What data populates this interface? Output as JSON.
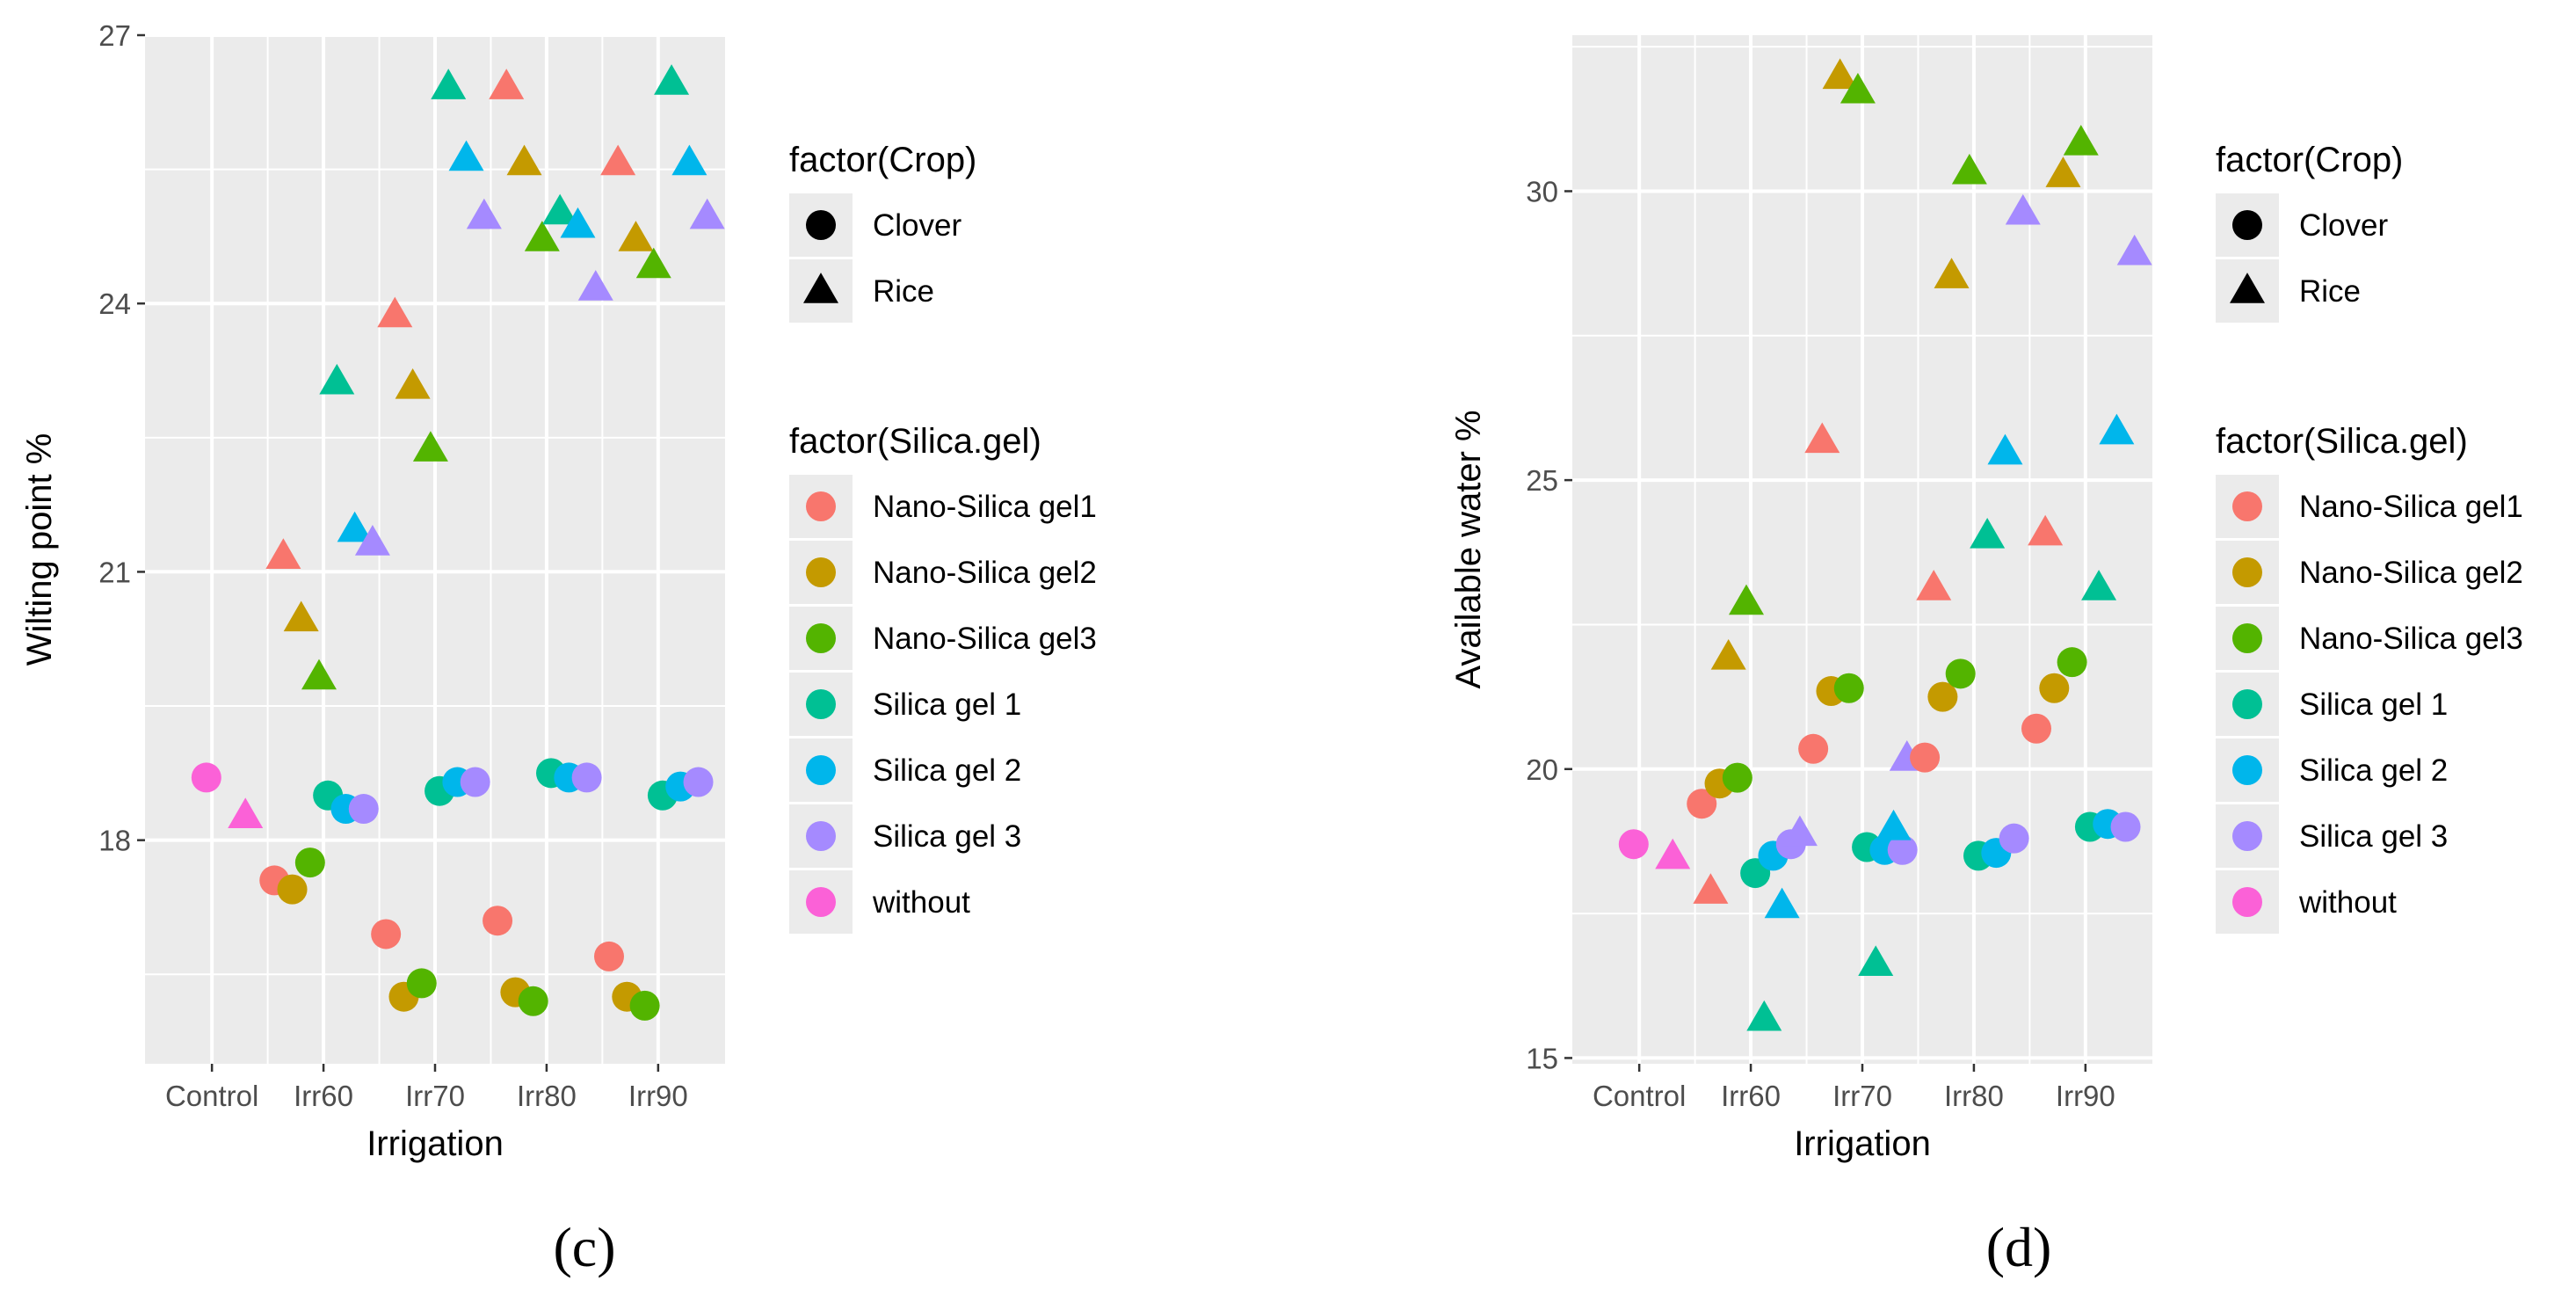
{
  "chart_data": [
    {
      "type": "scatter",
      "panel_label": "(c)",
      "panel_letter": "c",
      "xlabel": "Irrigation",
      "ylabel": "Wilting point  %",
      "categories": [
        "Control",
        "Irr60",
        "Irr70",
        "Irr80",
        "Irr90"
      ],
      "ylim": [
        15.5,
        27.0
      ],
      "yticks": [
        18,
        21,
        24,
        27
      ],
      "grid": true,
      "legend_position": "right",
      "points": [
        {
          "x": 0.95,
          "y": 18.7,
          "silica": "without",
          "crop": "Clover"
        },
        {
          "x": 1.3,
          "y": 18.25,
          "silica": "without",
          "crop": "Rice"
        },
        {
          "x": 1.56,
          "y": 17.55,
          "silica": "Nano-Silica gel1",
          "crop": "Clover"
        },
        {
          "x": 1.72,
          "y": 17.45,
          "silica": "Nano-Silica gel2",
          "crop": "Clover"
        },
        {
          "x": 1.88,
          "y": 17.75,
          "silica": "Nano-Silica gel3",
          "crop": "Clover"
        },
        {
          "x": 2.04,
          "y": 18.5,
          "silica": "Silica gel 1",
          "crop": "Clover"
        },
        {
          "x": 2.2,
          "y": 18.35,
          "silica": "Silica gel 2",
          "crop": "Clover"
        },
        {
          "x": 2.36,
          "y": 18.35,
          "silica": "Silica gel 3",
          "crop": "Clover"
        },
        {
          "x": 1.64,
          "y": 21.15,
          "silica": "Nano-Silica gel1",
          "crop": "Rice"
        },
        {
          "x": 1.8,
          "y": 20.45,
          "silica": "Nano-Silica gel2",
          "crop": "Rice"
        },
        {
          "x": 1.96,
          "y": 19.8,
          "silica": "Nano-Silica gel3",
          "crop": "Rice"
        },
        {
          "x": 2.12,
          "y": 23.1,
          "silica": "Silica gel 1",
          "crop": "Rice"
        },
        {
          "x": 2.28,
          "y": 21.45,
          "silica": "Silica gel 2",
          "crop": "Rice"
        },
        {
          "x": 2.44,
          "y": 21.3,
          "silica": "Silica gel 3",
          "crop": "Rice"
        },
        {
          "x": 2.56,
          "y": 16.95,
          "silica": "Nano-Silica gel1",
          "crop": "Clover"
        },
        {
          "x": 2.72,
          "y": 16.25,
          "silica": "Nano-Silica gel2",
          "crop": "Clover"
        },
        {
          "x": 2.88,
          "y": 16.4,
          "silica": "Nano-Silica gel3",
          "crop": "Clover"
        },
        {
          "x": 3.04,
          "y": 18.55,
          "silica": "Silica gel 1",
          "crop": "Clover"
        },
        {
          "x": 3.2,
          "y": 18.65,
          "silica": "Silica gel 2",
          "crop": "Clover"
        },
        {
          "x": 3.36,
          "y": 18.65,
          "silica": "Silica gel 3",
          "crop": "Clover"
        },
        {
          "x": 2.64,
          "y": 23.85,
          "silica": "Nano-Silica gel1",
          "crop": "Rice"
        },
        {
          "x": 2.8,
          "y": 23.05,
          "silica": "Nano-Silica gel2",
          "crop": "Rice"
        },
        {
          "x": 2.96,
          "y": 22.35,
          "silica": "Nano-Silica gel3",
          "crop": "Rice"
        },
        {
          "x": 3.12,
          "y": 26.4,
          "silica": "Silica gel 1",
          "crop": "Rice"
        },
        {
          "x": 3.28,
          "y": 25.6,
          "silica": "Silica gel 2",
          "crop": "Rice"
        },
        {
          "x": 3.44,
          "y": 24.95,
          "silica": "Silica gel 3",
          "crop": "Rice"
        },
        {
          "x": 3.56,
          "y": 17.1,
          "silica": "Nano-Silica gel1",
          "crop": "Clover"
        },
        {
          "x": 3.72,
          "y": 16.3,
          "silica": "Nano-Silica gel2",
          "crop": "Clover"
        },
        {
          "x": 3.88,
          "y": 16.2,
          "silica": "Nano-Silica gel3",
          "crop": "Clover"
        },
        {
          "x": 4.04,
          "y": 18.75,
          "silica": "Silica gel 1",
          "crop": "Clover"
        },
        {
          "x": 4.2,
          "y": 18.7,
          "silica": "Silica gel 2",
          "crop": "Clover"
        },
        {
          "x": 4.36,
          "y": 18.7,
          "silica": "Silica gel 3",
          "crop": "Clover"
        },
        {
          "x": 3.64,
          "y": 26.4,
          "silica": "Nano-Silica gel1",
          "crop": "Rice"
        },
        {
          "x": 3.8,
          "y": 25.55,
          "silica": "Nano-Silica gel2",
          "crop": "Rice"
        },
        {
          "x": 3.96,
          "y": 24.7,
          "silica": "Nano-Silica gel3",
          "crop": "Rice"
        },
        {
          "x": 4.12,
          "y": 25.0,
          "silica": "Silica gel 1",
          "crop": "Rice"
        },
        {
          "x": 4.28,
          "y": 24.85,
          "silica": "Silica gel 2",
          "crop": "Rice"
        },
        {
          "x": 4.44,
          "y": 24.15,
          "silica": "Silica gel 3",
          "crop": "Rice"
        },
        {
          "x": 4.56,
          "y": 16.7,
          "silica": "Nano-Silica gel1",
          "crop": "Clover"
        },
        {
          "x": 4.72,
          "y": 16.25,
          "silica": "Nano-Silica gel2",
          "crop": "Clover"
        },
        {
          "x": 4.88,
          "y": 16.15,
          "silica": "Nano-Silica gel3",
          "crop": "Clover"
        },
        {
          "x": 5.04,
          "y": 18.5,
          "silica": "Silica gel 1",
          "crop": "Clover"
        },
        {
          "x": 5.2,
          "y": 18.6,
          "silica": "Silica gel 2",
          "crop": "Clover"
        },
        {
          "x": 5.36,
          "y": 18.65,
          "silica": "Silica gel 3",
          "crop": "Clover"
        },
        {
          "x": 4.64,
          "y": 25.55,
          "silica": "Nano-Silica gel1",
          "crop": "Rice"
        },
        {
          "x": 4.8,
          "y": 24.7,
          "silica": "Nano-Silica gel2",
          "crop": "Rice"
        },
        {
          "x": 4.96,
          "y": 24.4,
          "silica": "Nano-Silica gel3",
          "crop": "Rice"
        },
        {
          "x": 5.12,
          "y": 26.45,
          "silica": "Silica gel 1",
          "crop": "Rice"
        },
        {
          "x": 5.28,
          "y": 25.55,
          "silica": "Silica gel 2",
          "crop": "Rice"
        },
        {
          "x": 5.44,
          "y": 24.95,
          "silica": "Silica gel 3",
          "crop": "Rice"
        }
      ]
    },
    {
      "type": "scatter",
      "panel_label": "(d)",
      "panel_letter": "d",
      "xlabel": "Irrigation",
      "ylabel": "Available water  %",
      "categories": [
        "Control",
        "Irr60",
        "Irr70",
        "Irr80",
        "Irr90"
      ],
      "ylim": [
        14.9,
        32.7
      ],
      "yticks": [
        15,
        20,
        25,
        30
      ],
      "grid": true,
      "legend_position": "right",
      "points": [
        {
          "x": 0.95,
          "y": 18.7,
          "silica": "without",
          "crop": "Clover"
        },
        {
          "x": 1.3,
          "y": 18.45,
          "silica": "without",
          "crop": "Rice"
        },
        {
          "x": 1.56,
          "y": 19.4,
          "silica": "Nano-Silica gel1",
          "crop": "Clover"
        },
        {
          "x": 1.72,
          "y": 19.75,
          "silica": "Nano-Silica gel2",
          "crop": "Clover"
        },
        {
          "x": 1.88,
          "y": 19.85,
          "silica": "Nano-Silica gel3",
          "crop": "Clover"
        },
        {
          "x": 2.04,
          "y": 18.2,
          "silica": "Silica gel 1",
          "crop": "Clover"
        },
        {
          "x": 2.2,
          "y": 18.5,
          "silica": "Silica gel 2",
          "crop": "Clover"
        },
        {
          "x": 2.36,
          "y": 18.7,
          "silica": "Silica gel 3",
          "crop": "Clover"
        },
        {
          "x": 1.64,
          "y": 17.85,
          "silica": "Nano-Silica gel1",
          "crop": "Rice"
        },
        {
          "x": 1.8,
          "y": 21.9,
          "silica": "Nano-Silica gel2",
          "crop": "Rice"
        },
        {
          "x": 1.96,
          "y": 22.85,
          "silica": "Nano-Silica gel3",
          "crop": "Rice"
        },
        {
          "x": 2.12,
          "y": 15.65,
          "silica": "Silica gel 1",
          "crop": "Rice"
        },
        {
          "x": 2.28,
          "y": 17.6,
          "silica": "Silica gel 2",
          "crop": "Rice"
        },
        {
          "x": 2.44,
          "y": 18.85,
          "silica": "Silica gel 3",
          "crop": "Rice"
        },
        {
          "x": 2.56,
          "y": 20.35,
          "silica": "Nano-Silica gel1",
          "crop": "Clover"
        },
        {
          "x": 2.72,
          "y": 21.35,
          "silica": "Nano-Silica gel2",
          "crop": "Clover"
        },
        {
          "x": 2.88,
          "y": 21.4,
          "silica": "Nano-Silica gel3",
          "crop": "Clover"
        },
        {
          "x": 3.04,
          "y": 18.65,
          "silica": "Silica gel 1",
          "crop": "Clover"
        },
        {
          "x": 3.2,
          "y": 18.6,
          "silica": "Silica gel 2",
          "crop": "Clover"
        },
        {
          "x": 3.36,
          "y": 18.6,
          "silica": "Silica gel 3",
          "crop": "Clover"
        },
        {
          "x": 2.64,
          "y": 25.65,
          "silica": "Nano-Silica gel1",
          "crop": "Rice"
        },
        {
          "x": 2.8,
          "y": 31.95,
          "silica": "Nano-Silica gel2",
          "crop": "Rice"
        },
        {
          "x": 2.96,
          "y": 31.7,
          "silica": "Nano-Silica gel3",
          "crop": "Rice"
        },
        {
          "x": 3.12,
          "y": 16.6,
          "silica": "Silica gel 1",
          "crop": "Rice"
        },
        {
          "x": 3.28,
          "y": 18.95,
          "silica": "Silica gel 2",
          "crop": "Rice"
        },
        {
          "x": 3.4,
          "y": 20.15,
          "silica": "Silica gel 3",
          "crop": "Rice"
        },
        {
          "x": 3.56,
          "y": 20.2,
          "silica": "Nano-Silica gel1",
          "crop": "Clover"
        },
        {
          "x": 3.72,
          "y": 21.25,
          "silica": "Nano-Silica gel2",
          "crop": "Clover"
        },
        {
          "x": 3.88,
          "y": 21.65,
          "silica": "Nano-Silica gel3",
          "crop": "Clover"
        },
        {
          "x": 4.04,
          "y": 18.5,
          "silica": "Silica gel 1",
          "crop": "Clover"
        },
        {
          "x": 4.2,
          "y": 18.55,
          "silica": "Silica gel 2",
          "crop": "Clover"
        },
        {
          "x": 4.36,
          "y": 18.8,
          "silica": "Silica gel 3",
          "crop": "Clover"
        },
        {
          "x": 3.64,
          "y": 23.1,
          "silica": "Nano-Silica gel1",
          "crop": "Rice"
        },
        {
          "x": 3.8,
          "y": 28.5,
          "silica": "Nano-Silica gel2",
          "crop": "Rice"
        },
        {
          "x": 3.96,
          "y": 30.3,
          "silica": "Nano-Silica gel3",
          "crop": "Rice"
        },
        {
          "x": 4.12,
          "y": 24.0,
          "silica": "Silica gel 1",
          "crop": "Rice"
        },
        {
          "x": 4.28,
          "y": 25.45,
          "silica": "Silica gel 2",
          "crop": "Rice"
        },
        {
          "x": 4.44,
          "y": 29.6,
          "silica": "Silica gel 3",
          "crop": "Rice"
        },
        {
          "x": 4.56,
          "y": 20.7,
          "silica": "Nano-Silica gel1",
          "crop": "Clover"
        },
        {
          "x": 4.72,
          "y": 21.4,
          "silica": "Nano-Silica gel2",
          "crop": "Clover"
        },
        {
          "x": 4.88,
          "y": 21.85,
          "silica": "Nano-Silica gel3",
          "crop": "Clover"
        },
        {
          "x": 5.04,
          "y": 19.0,
          "silica": "Silica gel 1",
          "crop": "Clover"
        },
        {
          "x": 5.2,
          "y": 19.05,
          "silica": "Silica gel 2",
          "crop": "Clover"
        },
        {
          "x": 5.36,
          "y": 19.0,
          "silica": "Silica gel 3",
          "crop": "Clover"
        },
        {
          "x": 4.64,
          "y": 24.05,
          "silica": "Nano-Silica gel1",
          "crop": "Rice"
        },
        {
          "x": 4.8,
          "y": 30.25,
          "silica": "Nano-Silica gel2",
          "crop": "Rice"
        },
        {
          "x": 4.96,
          "y": 30.8,
          "silica": "Nano-Silica gel3",
          "crop": "Rice"
        },
        {
          "x": 5.12,
          "y": 23.1,
          "silica": "Silica gel 1",
          "crop": "Rice"
        },
        {
          "x": 5.28,
          "y": 25.8,
          "silica": "Silica gel 2",
          "crop": "Rice"
        },
        {
          "x": 5.44,
          "y": 28.9,
          "silica": "Silica gel 3",
          "crop": "Rice"
        }
      ]
    }
  ],
  "legend": {
    "crop_title": "factor(Crop)",
    "crop_entries": [
      {
        "label": "Clover",
        "shape": "circle"
      },
      {
        "label": "Rice",
        "shape": "triangle"
      }
    ],
    "silica_title": "factor(Silica.gel)",
    "silica_entries": [
      {
        "label": "Nano-Silica gel1",
        "color": "#F8766D"
      },
      {
        "label": "Nano-Silica gel2",
        "color": "#C49A00"
      },
      {
        "label": "Nano-Silica gel3",
        "color": "#53B400"
      },
      {
        "label": "Silica gel 1",
        "color": "#00C094"
      },
      {
        "label": "Silica gel 2",
        "color": "#00B6EB"
      },
      {
        "label": "Silica gel 3",
        "color": "#A58AFF"
      },
      {
        "label": "without",
        "color": "#FB61D7"
      }
    ]
  },
  "colors": {
    "panel_background": "#EBEBEB",
    "grid": "#FFFFFF",
    "tick_text": "#4D4D4D",
    "tick_mark": "#333333"
  }
}
